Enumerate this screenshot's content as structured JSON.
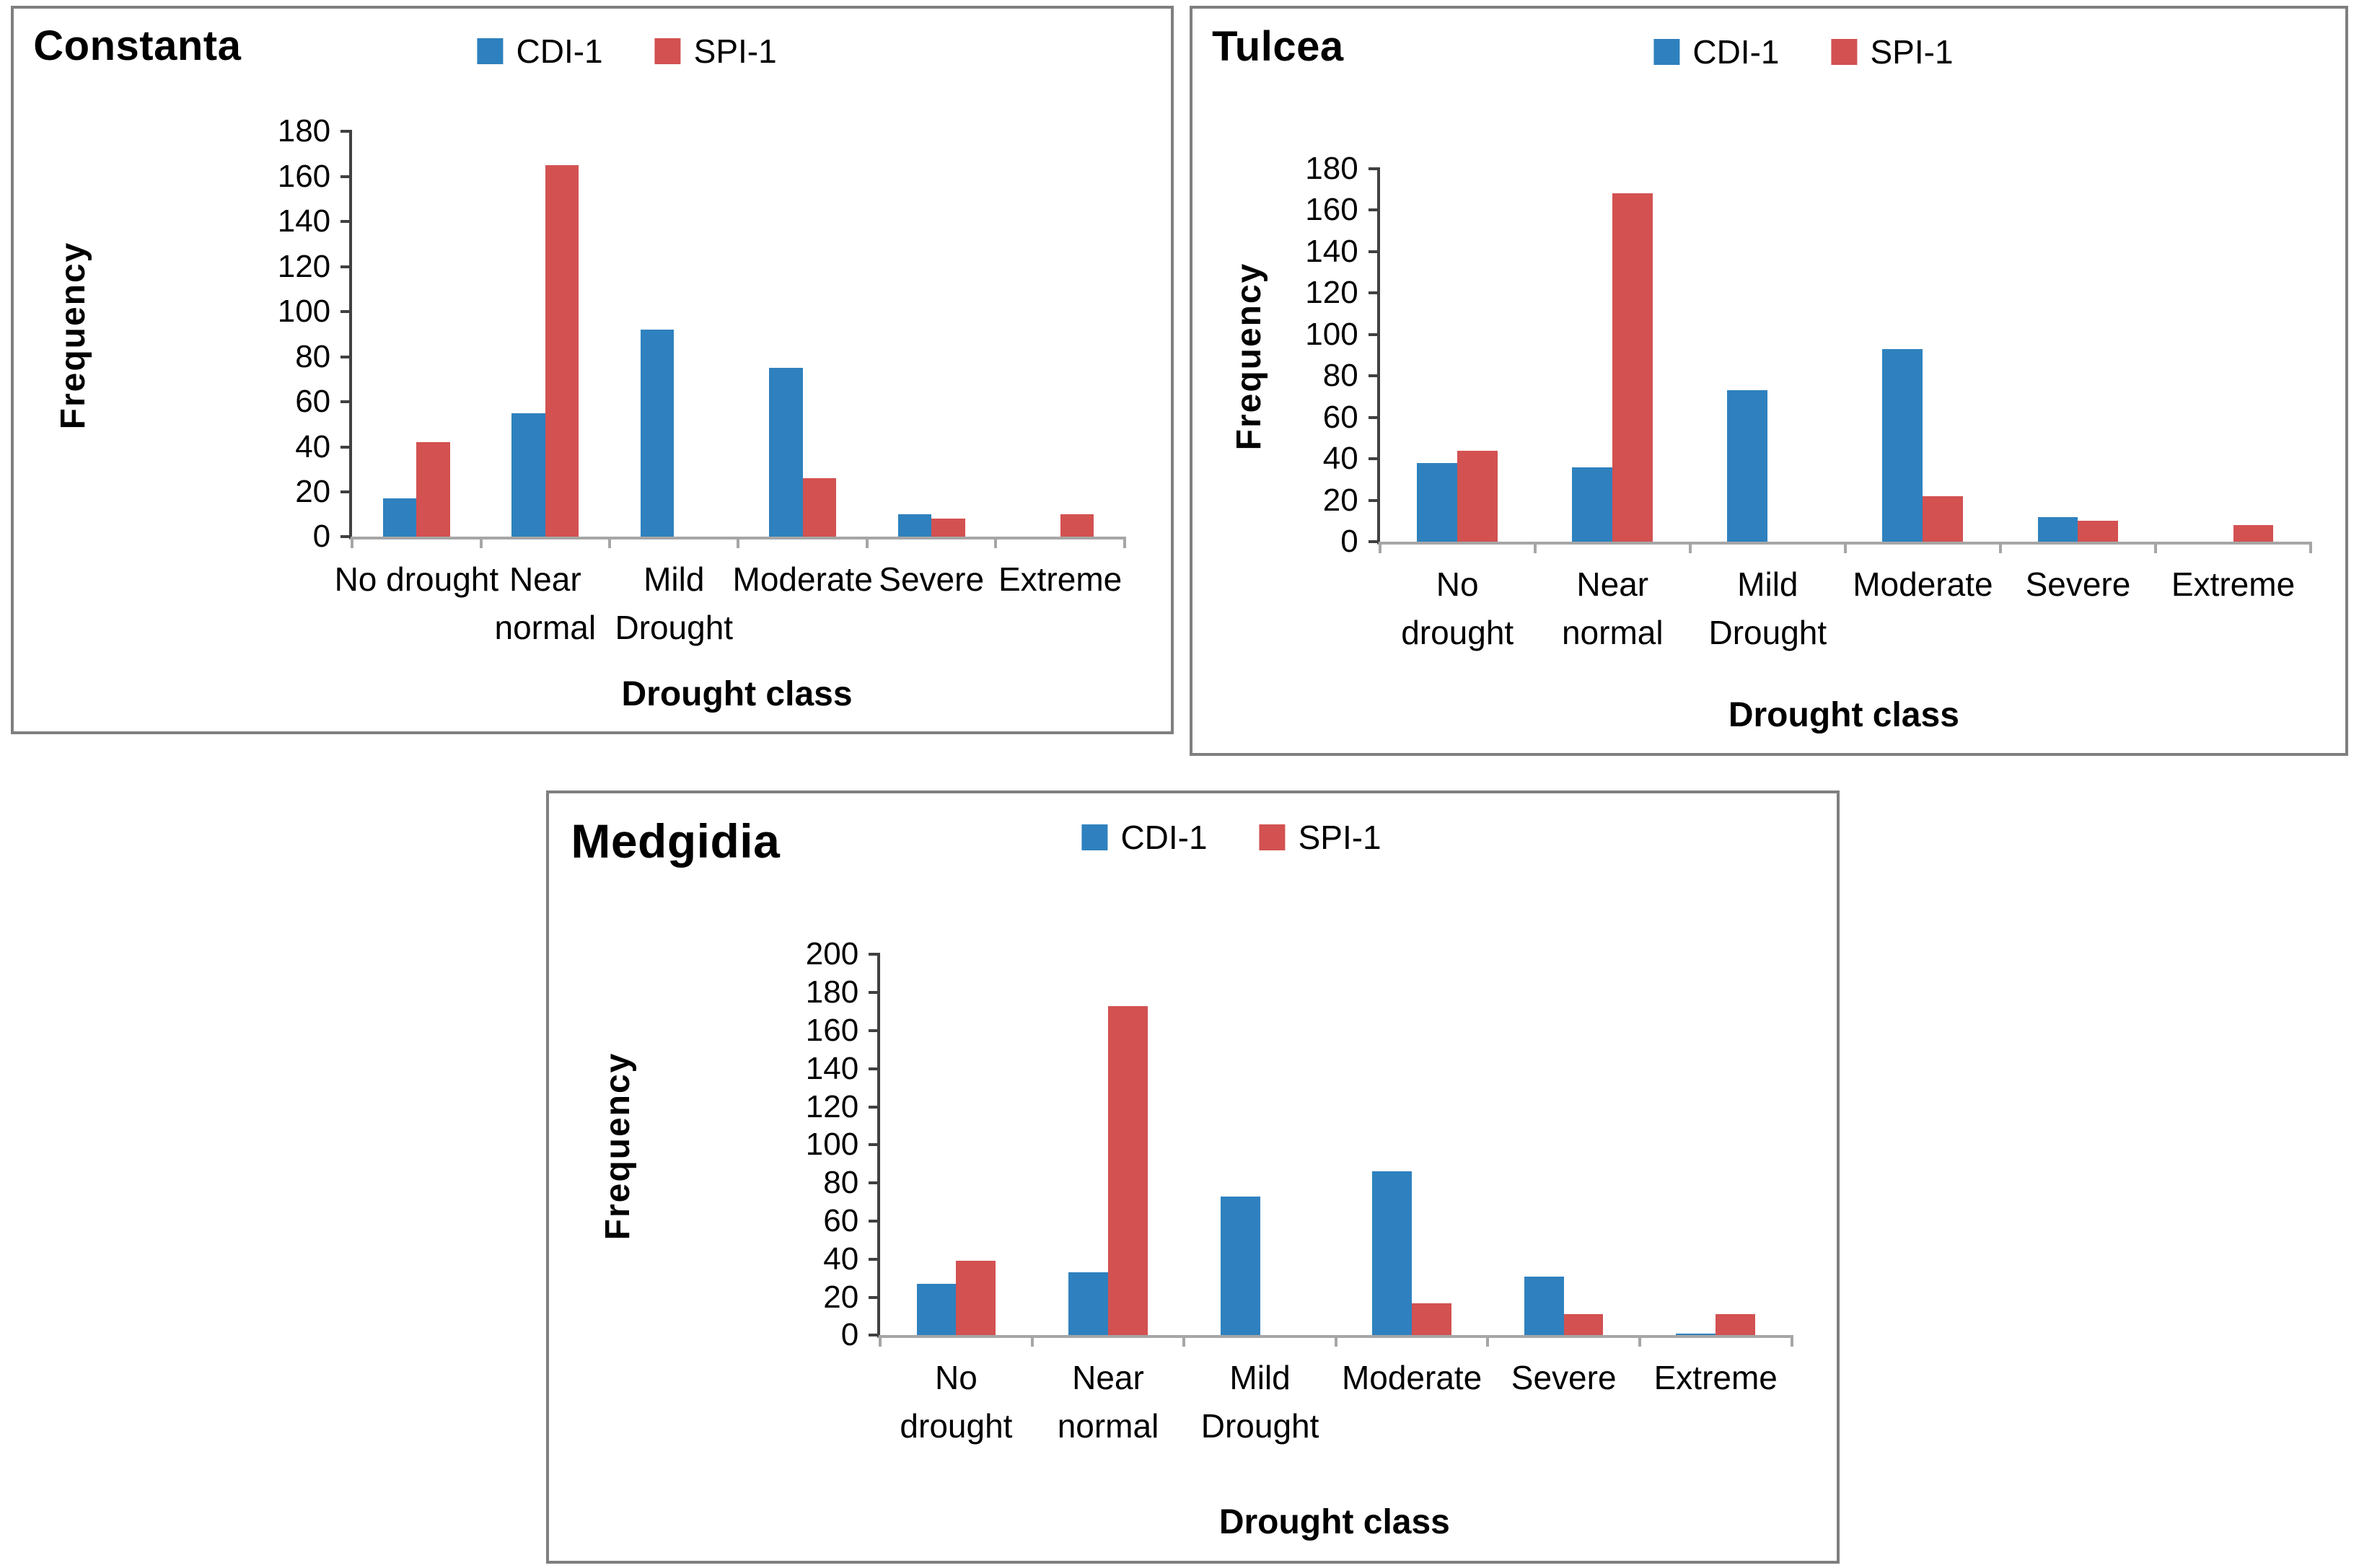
{
  "colors": {
    "cdi_blue": "#2E81BE",
    "spi_red": "#D35151",
    "panel_border": "#7F7F7F",
    "y_axis": "#404040",
    "x_axis": "#A6A6A6",
    "text": "#000000"
  },
  "chart_data": [
    {
      "type": "bar",
      "title": "Constanta",
      "xlabel": "Drought class",
      "ylabel": "Frequency",
      "ylim": [
        0,
        180
      ],
      "ytick_step": 20,
      "grid": false,
      "legend_position": "top-center",
      "legend": [
        "CDI-1",
        "SPI-1"
      ],
      "categories": [
        "No drought",
        "Near\nnormal",
        "Mild\nDrought",
        "Moderate",
        "Severe",
        "Extreme"
      ],
      "series": [
        {
          "name": "CDI-1",
          "color": "#2E81BE",
          "values": [
            17,
            55,
            92,
            75,
            10,
            0
          ]
        },
        {
          "name": "SPI-1",
          "color": "#D35151",
          "values": [
            42,
            165,
            0,
            26,
            8,
            10
          ]
        }
      ]
    },
    {
      "type": "bar",
      "title": "Tulcea",
      "xlabel": "Drought class",
      "ylabel": "Frequency",
      "ylim": [
        0,
        180
      ],
      "ytick_step": 20,
      "grid": false,
      "legend_position": "top-center",
      "legend": [
        "CDI-1",
        "SPI-1"
      ],
      "categories": [
        "No\ndrought",
        "Near\nnormal",
        "Mild\nDrought",
        "Moderate",
        "Severe",
        "Extreme"
      ],
      "series": [
        {
          "name": "CDI-1",
          "color": "#2E81BE",
          "values": [
            38,
            36,
            73,
            93,
            12,
            0
          ]
        },
        {
          "name": "SPI-1",
          "color": "#D35151",
          "values": [
            44,
            168,
            0,
            22,
            10,
            8
          ]
        }
      ]
    },
    {
      "type": "bar",
      "title": "Medgidia",
      "xlabel": "Drought class",
      "ylabel": "Frequency",
      "ylim": [
        0,
        200
      ],
      "ytick_step": 20,
      "grid": false,
      "legend_position": "top-center",
      "legend": [
        "CDI-1",
        "SPI-1"
      ],
      "categories": [
        "No\ndrought",
        "Near\nnormal",
        "Mild\nDrought",
        "Moderate",
        "Severe",
        "Extreme"
      ],
      "series": [
        {
          "name": "CDI-1",
          "color": "#2E81BE",
          "values": [
            27,
            33,
            73,
            86,
            31,
            1
          ]
        },
        {
          "name": "SPI-1",
          "color": "#D35151",
          "values": [
            39,
            173,
            0,
            17,
            11,
            11
          ]
        }
      ]
    }
  ]
}
